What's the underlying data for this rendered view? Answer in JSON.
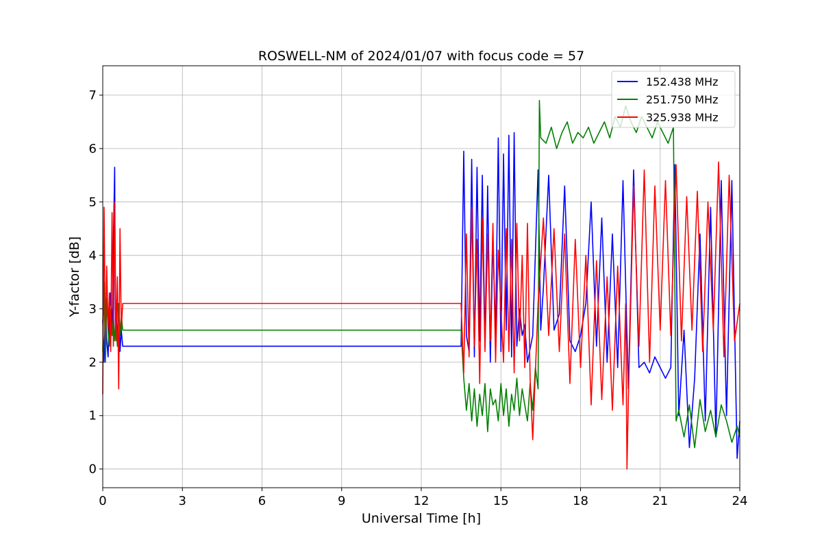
{
  "chart_data": {
    "type": "line",
    "title": "ROSWELL-NM of 2024/01/07 with focus code = 57",
    "xlabel": "Universal Time [h]",
    "ylabel": "Y-factor [dB]",
    "xlim": [
      0,
      24
    ],
    "ylim": [
      -0.35,
      7.55
    ],
    "xticks": [
      0,
      3,
      6,
      9,
      12,
      15,
      18,
      21,
      24
    ],
    "yticks": [
      0,
      1,
      2,
      3,
      4,
      5,
      6,
      7
    ],
    "grid": true,
    "legend_position": "top-right",
    "series": [
      {
        "name": "152.438 MHz",
        "color": "#0000ff",
        "x": [
          0.0,
          0.05,
          0.1,
          0.15,
          0.2,
          0.25,
          0.3,
          0.35,
          0.4,
          0.45,
          0.48,
          0.5,
          0.55,
          0.6,
          0.65,
          0.7,
          0.75,
          13.5,
          13.6,
          13.7,
          13.8,
          13.9,
          14.0,
          14.1,
          14.2,
          14.3,
          14.4,
          14.5,
          14.6,
          14.7,
          14.8,
          14.9,
          15.0,
          15.1,
          15.2,
          15.3,
          15.4,
          15.5,
          15.6,
          15.7,
          15.8,
          15.9,
          16.0,
          16.2,
          16.4,
          16.5,
          16.6,
          16.8,
          17.0,
          17.2,
          17.4,
          17.6,
          17.8,
          18.0,
          18.2,
          18.4,
          18.6,
          18.8,
          19.0,
          19.2,
          19.4,
          19.6,
          19.8,
          20.0,
          20.2,
          20.4,
          20.6,
          20.8,
          21.0,
          21.2,
          21.4,
          21.55,
          21.7,
          21.9,
          22.1,
          22.3,
          22.5,
          22.7,
          22.9,
          23.1,
          23.3,
          23.5,
          23.7,
          23.9,
          24.0
        ],
        "y": [
          2.8,
          2.0,
          3.1,
          2.4,
          2.1,
          2.9,
          3.3,
          2.5,
          4.2,
          5.65,
          2.6,
          3.0,
          2.4,
          3.1,
          2.2,
          2.6,
          2.3,
          2.3,
          5.95,
          2.5,
          2.2,
          5.8,
          2.1,
          5.65,
          2.4,
          5.5,
          2.3,
          5.3,
          2.0,
          4.3,
          2.5,
          6.2,
          2.2,
          5.9,
          2.6,
          6.25,
          2.1,
          6.3,
          2.3,
          3.0,
          2.5,
          2.7,
          2.0,
          2.5,
          5.6,
          2.6,
          3.4,
          5.5,
          2.6,
          2.9,
          5.3,
          2.4,
          2.2,
          2.5,
          3.1,
          5.0,
          2.3,
          4.7,
          2.0,
          4.4,
          1.9,
          5.4,
          1.5,
          5.6,
          1.9,
          2.0,
          1.8,
          2.1,
          1.9,
          1.7,
          1.9,
          5.7,
          1.0,
          2.6,
          0.4,
          1.7,
          4.4,
          0.9,
          4.9,
          0.6,
          5.4,
          1.0,
          5.4,
          0.2,
          0.9
        ]
      },
      {
        "name": "251.750 MHz",
        "color": "#008000",
        "x": [
          0.0,
          0.05,
          0.1,
          0.15,
          0.2,
          0.25,
          0.3,
          0.35,
          0.4,
          0.45,
          0.5,
          0.55,
          0.6,
          0.65,
          0.7,
          0.75,
          13.5,
          13.6,
          13.7,
          13.8,
          13.9,
          14.0,
          14.1,
          14.2,
          14.3,
          14.4,
          14.5,
          14.6,
          14.7,
          14.8,
          14.9,
          15.0,
          15.1,
          15.2,
          15.3,
          15.4,
          15.5,
          15.6,
          15.7,
          15.8,
          15.9,
          16.0,
          16.1,
          16.2,
          16.3,
          16.4,
          16.45,
          16.5,
          16.7,
          16.9,
          17.1,
          17.3,
          17.5,
          17.7,
          17.9,
          18.1,
          18.3,
          18.5,
          18.7,
          18.9,
          19.1,
          19.3,
          19.5,
          19.7,
          19.9,
          20.1,
          20.3,
          20.5,
          20.7,
          20.9,
          21.1,
          21.3,
          21.5,
          21.6,
          21.7,
          21.9,
          22.1,
          22.3,
          22.5,
          22.7,
          22.9,
          23.1,
          23.3,
          23.5,
          23.7,
          23.9,
          24.0
        ],
        "y": [
          2.2,
          3.5,
          2.0,
          3.2,
          2.6,
          2.3,
          3.0,
          2.5,
          2.9,
          2.4,
          2.8,
          2.3,
          3.1,
          2.5,
          2.9,
          2.6,
          2.6,
          1.7,
          1.1,
          1.6,
          0.9,
          1.5,
          0.8,
          1.4,
          1.0,
          1.6,
          0.7,
          1.5,
          1.2,
          1.3,
          0.9,
          1.6,
          1.0,
          1.5,
          0.8,
          1.4,
          1.1,
          1.7,
          1.0,
          1.5,
          1.2,
          0.9,
          1.6,
          1.1,
          1.9,
          1.5,
          6.9,
          6.2,
          6.1,
          6.4,
          6.0,
          6.3,
          6.5,
          6.1,
          6.3,
          6.2,
          6.4,
          6.1,
          6.3,
          6.5,
          6.2,
          6.6,
          6.4,
          6.8,
          6.5,
          6.3,
          6.6,
          6.4,
          6.2,
          6.5,
          6.3,
          6.1,
          6.4,
          0.9,
          1.1,
          0.6,
          1.2,
          0.4,
          1.3,
          0.7,
          1.1,
          0.6,
          1.2,
          0.9,
          0.5,
          0.8,
          0.6
        ]
      },
      {
        "name": "325.938 MHz",
        "color": "#ff0000",
        "x": [
          0.0,
          0.05,
          0.1,
          0.15,
          0.2,
          0.25,
          0.3,
          0.35,
          0.4,
          0.45,
          0.5,
          0.55,
          0.6,
          0.65,
          0.7,
          0.75,
          13.5,
          13.6,
          13.7,
          13.8,
          13.9,
          14.0,
          14.1,
          14.2,
          14.3,
          14.4,
          14.5,
          14.6,
          14.7,
          14.8,
          14.9,
          15.0,
          15.1,
          15.2,
          15.3,
          15.4,
          15.5,
          15.6,
          15.7,
          15.8,
          15.9,
          16.0,
          16.1,
          16.2,
          16.4,
          16.6,
          16.8,
          17.0,
          17.2,
          17.4,
          17.6,
          17.8,
          18.0,
          18.2,
          18.4,
          18.6,
          18.8,
          19.0,
          19.2,
          19.4,
          19.6,
          19.7,
          19.75,
          19.8,
          20.0,
          20.2,
          20.4,
          20.6,
          20.8,
          21.0,
          21.2,
          21.4,
          21.6,
          21.8,
          22.0,
          22.2,
          22.4,
          22.6,
          22.8,
          23.0,
          23.2,
          23.4,
          23.6,
          23.8,
          24.0
        ],
        "y": [
          1.4,
          4.9,
          2.4,
          3.8,
          2.6,
          3.3,
          2.2,
          4.8,
          2.3,
          5.0,
          2.4,
          3.6,
          1.5,
          4.5,
          2.6,
          3.1,
          3.1,
          1.8,
          4.4,
          2.1,
          4.9,
          2.3,
          4.3,
          1.6,
          4.7,
          2.2,
          4.4,
          2.4,
          4.6,
          2.0,
          4.1,
          3.0,
          2.0,
          4.5,
          2.2,
          4.3,
          1.8,
          4.6,
          2.4,
          4.0,
          1.9,
          4.6,
          1.7,
          0.55,
          3.1,
          4.7,
          2.5,
          4.5,
          2.2,
          4.4,
          1.6,
          4.3,
          1.9,
          4.0,
          1.2,
          3.9,
          1.3,
          3.6,
          1.1,
          3.8,
          1.2,
          3.1,
          0.0,
          1.3,
          5.3,
          2.3,
          5.6,
          2.0,
          5.3,
          2.6,
          5.4,
          2.5,
          5.7,
          2.4,
          5.1,
          2.6,
          5.2,
          2.2,
          5.0,
          2.6,
          5.75,
          2.1,
          5.5,
          2.4,
          3.1
        ]
      }
    ]
  }
}
